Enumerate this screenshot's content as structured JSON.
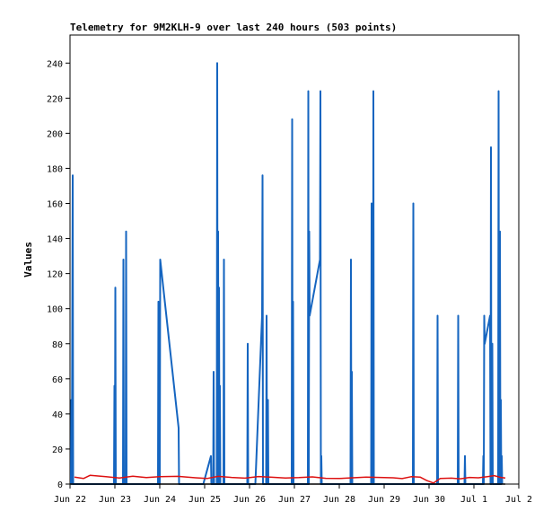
{
  "chart_data": {
    "type": "line",
    "title": "Telemetry for 9M2KLH-9 over last 240 hours (503 points)",
    "xlabel": "",
    "ylabel": "Values",
    "x_tick_labels": [
      "Jun 22",
      "Jun 23",
      "Jun 24",
      "Jun 25",
      "Jun 26",
      "Jun 27",
      "Jun 28",
      "Jun 29",
      "Jun 30",
      "Jul 1",
      "Jul 2"
    ],
    "xlim": [
      0,
      10
    ],
    "ylim": [
      0,
      256
    ],
    "y_ticks": [
      0,
      20,
      40,
      60,
      80,
      100,
      120,
      140,
      160,
      180,
      200,
      220,
      240
    ],
    "grid": false,
    "series": [
      {
        "name": "",
        "color": "#1565c0",
        "points": [
          [
            0.02,
            0
          ],
          [
            0.03,
            48
          ],
          [
            0.04,
            0
          ],
          [
            0.06,
            176
          ],
          [
            0.07,
            0
          ],
          [
            0.98,
            0
          ],
          [
            0.99,
            56
          ],
          [
            1.0,
            0
          ],
          [
            1.01,
            112
          ],
          [
            1.02,
            0
          ],
          [
            1.18,
            0
          ],
          [
            1.19,
            128
          ],
          [
            1.2,
            0
          ],
          [
            1.24,
            0
          ],
          [
            1.25,
            144
          ],
          [
            1.26,
            0
          ],
          [
            1.96,
            0
          ],
          [
            1.97,
            104
          ],
          [
            1.98,
            0
          ],
          [
            2.0,
            0
          ],
          [
            2.01,
            128
          ],
          [
            2.42,
            32
          ],
          [
            2.43,
            0
          ],
          [
            2.97,
            0
          ],
          [
            3.14,
            16
          ],
          [
            3.15,
            0
          ],
          [
            3.19,
            0
          ],
          [
            3.2,
            64
          ],
          [
            3.21,
            0
          ],
          [
            3.27,
            0
          ],
          [
            3.28,
            240
          ],
          [
            3.29,
            0
          ],
          [
            3.3,
            144
          ],
          [
            3.31,
            0
          ],
          [
            3.32,
            112
          ],
          [
            3.33,
            0
          ],
          [
            3.34,
            56
          ],
          [
            3.35,
            0
          ],
          [
            3.42,
            0
          ],
          [
            3.43,
            128
          ],
          [
            3.44,
            0
          ],
          [
            3.95,
            0
          ],
          [
            3.96,
            80
          ],
          [
            3.97,
            0
          ],
          [
            4.13,
            0
          ],
          [
            4.28,
            96
          ],
          [
            4.29,
            176
          ],
          [
            4.3,
            0
          ],
          [
            4.37,
            0
          ],
          [
            4.38,
            96
          ],
          [
            4.39,
            0
          ],
          [
            4.41,
            48
          ],
          [
            4.42,
            0
          ],
          [
            4.94,
            0
          ],
          [
            4.95,
            208
          ],
          [
            4.96,
            0
          ],
          [
            4.97,
            104
          ],
          [
            4.98,
            0
          ],
          [
            5.3,
            0
          ],
          [
            5.31,
            224
          ],
          [
            5.32,
            0
          ],
          [
            5.33,
            144
          ],
          [
            5.34,
            96
          ],
          [
            5.57,
            128
          ],
          [
            5.58,
            224
          ],
          [
            5.59,
            0
          ],
          [
            5.6,
            16
          ],
          [
            5.61,
            0
          ],
          [
            6.25,
            0
          ],
          [
            6.26,
            128
          ],
          [
            6.27,
            0
          ],
          [
            6.28,
            64
          ],
          [
            6.29,
            0
          ],
          [
            6.71,
            0
          ],
          [
            6.72,
            160
          ],
          [
            6.73,
            0
          ],
          [
            6.74,
            40
          ],
          [
            6.75,
            0
          ],
          [
            6.76,
            224
          ],
          [
            6.77,
            0
          ],
          [
            7.64,
            0
          ],
          [
            7.65,
            160
          ],
          [
            7.66,
            0
          ],
          [
            8.18,
            0
          ],
          [
            8.19,
            96
          ],
          [
            8.2,
            0
          ],
          [
            8.64,
            0
          ],
          [
            8.65,
            96
          ],
          [
            8.66,
            0
          ],
          [
            8.79,
            0
          ],
          [
            8.8,
            16
          ],
          [
            8.81,
            0
          ],
          [
            9.2,
            0
          ],
          [
            9.21,
            16
          ],
          [
            9.22,
            0
          ],
          [
            9.23,
            96
          ],
          [
            9.24,
            80
          ],
          [
            9.36,
            96
          ],
          [
            9.37,
            0
          ],
          [
            9.38,
            192
          ],
          [
            9.39,
            0
          ],
          [
            9.41,
            80
          ],
          [
            9.42,
            0
          ],
          [
            9.54,
            0
          ],
          [
            9.55,
            224
          ],
          [
            9.56,
            0
          ],
          [
            9.58,
            144
          ],
          [
            9.59,
            0
          ],
          [
            9.6,
            48
          ],
          [
            9.61,
            0
          ],
          [
            9.62,
            16
          ],
          [
            9.63,
            0
          ]
        ]
      },
      {
        "name": "",
        "color": "#dd1111",
        "points": [
          [
            0.1,
            4
          ],
          [
            0.3,
            3.2
          ],
          [
            0.45,
            5
          ],
          [
            0.8,
            4.2
          ],
          [
            1.1,
            3.5
          ],
          [
            1.4,
            4.5
          ],
          [
            1.7,
            3.7
          ],
          [
            2.0,
            4.2
          ],
          [
            2.4,
            4.4
          ],
          [
            2.8,
            3.6
          ],
          [
            3.05,
            3.2
          ],
          [
            3.3,
            4.4
          ],
          [
            3.6,
            3.8
          ],
          [
            3.9,
            3.4
          ],
          [
            4.2,
            4.3
          ],
          [
            4.5,
            3.9
          ],
          [
            4.8,
            3.5
          ],
          [
            5.1,
            3.7
          ],
          [
            5.4,
            4.1
          ],
          [
            5.7,
            3.3
          ],
          [
            6.0,
            3.2
          ],
          [
            6.3,
            3.6
          ],
          [
            6.6,
            4.0
          ],
          [
            6.9,
            3.8
          ],
          [
            7.2,
            3.6
          ],
          [
            7.4,
            3.1
          ],
          [
            7.6,
            4.2
          ],
          [
            7.8,
            4.0
          ],
          [
            7.95,
            2.0
          ],
          [
            8.1,
            0.6
          ],
          [
            8.25,
            3.2
          ],
          [
            8.5,
            3.4
          ],
          [
            8.7,
            3.0
          ],
          [
            8.9,
            3.8
          ],
          [
            9.1,
            3.6
          ],
          [
            9.3,
            4.2
          ],
          [
            9.45,
            4.8
          ],
          [
            9.6,
            3.8
          ],
          [
            9.7,
            3.5
          ]
        ]
      },
      {
        "name": "",
        "color": "#000000",
        "points": [
          [
            0.0,
            0
          ],
          [
            9.7,
            0
          ]
        ]
      }
    ]
  }
}
